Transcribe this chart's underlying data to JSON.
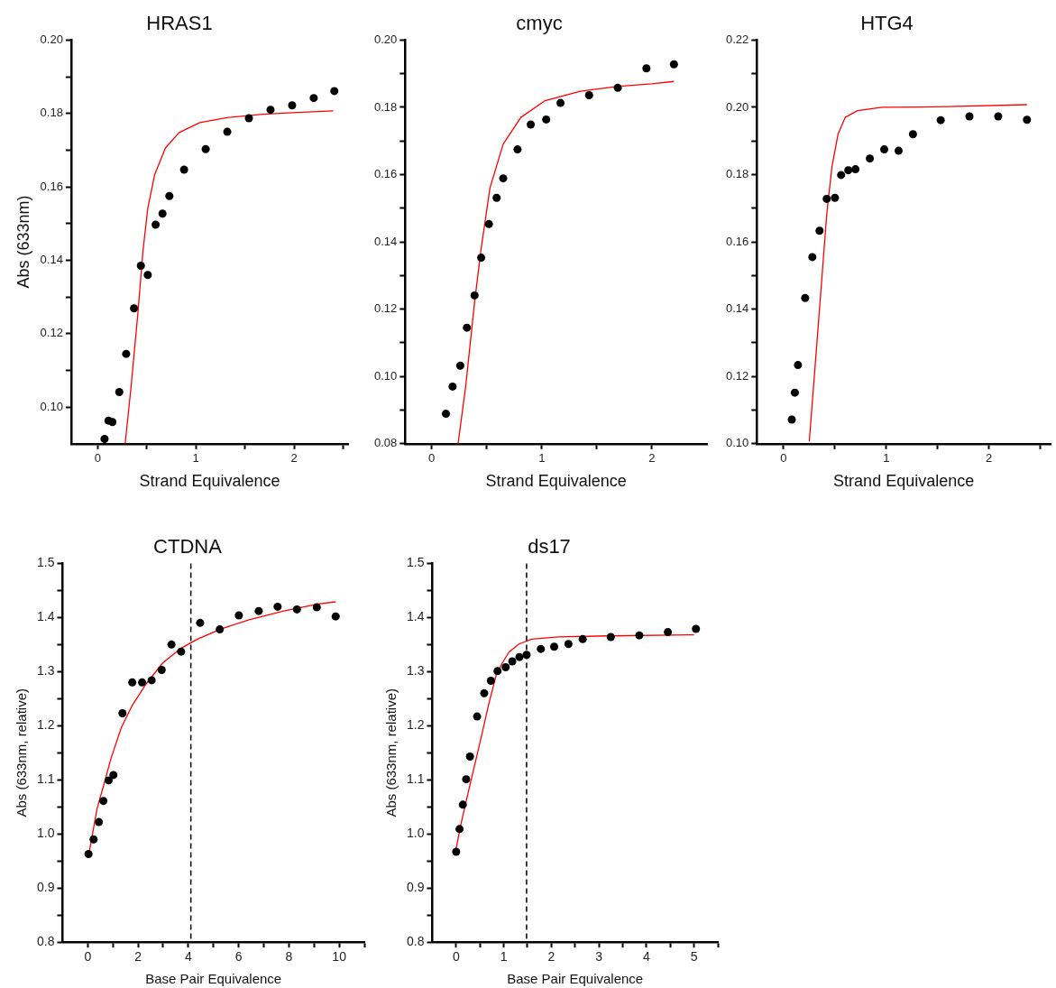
{
  "chart_data": [
    {
      "type": "scatter",
      "title": "HRAS1",
      "xlabel": "Strand Equivalence",
      "ylabel": "Abs (633nm)",
      "marker": "circle",
      "grid": false,
      "xlim": [
        -0.27,
        2.55
      ],
      "ylim": [
        0.09,
        0.2
      ],
      "xticks": [
        0,
        {
          "value": 0.5,
          "label": null
        },
        1,
        {
          "value": 1.5,
          "label": null
        },
        2,
        {
          "value": 2.5,
          "label": null
        }
      ],
      "yticks": [
        {
          "value": 0.1,
          "label": "0.10"
        },
        {
          "value": 0.11,
          "label": null
        },
        0.12,
        {
          "value": 0.13,
          "label": null
        },
        0.14,
        {
          "value": 0.15,
          "label": null
        },
        0.16,
        {
          "value": 0.17,
          "label": null
        },
        0.18,
        {
          "value": 0.19,
          "label": null
        },
        {
          "value": 0.2,
          "label": "0.20"
        }
      ],
      "series": [
        {
          "type": "scatter",
          "color": "#000000",
          "x": [
            0.07,
            0.11,
            0.15,
            0.22,
            0.29,
            0.37,
            0.44,
            0.51,
            0.59,
            0.66,
            0.73,
            0.88,
            1.1,
            1.32,
            1.54,
            1.76,
            1.98,
            2.2,
            2.41
          ],
          "values": [
            0.0913,
            0.0963,
            0.0959,
            0.1041,
            0.1145,
            0.1269,
            0.1385,
            0.136,
            0.1497,
            0.1527,
            0.1575,
            0.1647,
            0.1703,
            0.175,
            0.1787,
            0.181,
            0.1822,
            0.1842,
            0.1861
          ]
        },
        {
          "type": "line",
          "marker": "none",
          "color": "#ff0000",
          "x": [
            0.28,
            0.34,
            0.41,
            0.46,
            0.51,
            0.58,
            0.69,
            0.83,
            1.04,
            1.33,
            1.68,
            2.03,
            2.4
          ],
          "values": [
            0.09,
            0.1055,
            0.1257,
            0.1422,
            0.1541,
            0.1633,
            0.1706,
            0.1748,
            0.1775,
            0.1789,
            0.1798,
            0.1803,
            0.1807
          ]
        }
      ]
    },
    {
      "type": "scatter",
      "title": "cmyc",
      "xlabel": "Strand Equivalence",
      "marker": "circle",
      "grid": false,
      "xlim": [
        -0.24,
        2.5
      ],
      "ylim": [
        0.08,
        0.2
      ],
      "xticks": [
        0,
        {
          "value": 0.5,
          "label": null
        },
        1,
        {
          "value": 1.5,
          "label": null
        },
        2
      ],
      "yticks": [
        0.08,
        {
          "value": 0.09,
          "label": null
        },
        {
          "value": 0.1,
          "label": "0.10"
        },
        {
          "value": 0.11,
          "label": null
        },
        0.12,
        {
          "value": 0.13,
          "label": null
        },
        0.14,
        {
          "value": 0.15,
          "label": null
        },
        0.16,
        {
          "value": 0.17,
          "label": null
        },
        0.18,
        {
          "value": 0.19,
          "label": null
        },
        {
          "value": 0.2,
          "label": "0.20"
        }
      ],
      "series": [
        {
          "type": "scatter",
          "color": "#000000",
          "x": [
            0.13,
            0.19,
            0.26,
            0.32,
            0.39,
            0.45,
            0.52,
            0.59,
            0.65,
            0.78,
            0.9,
            1.04,
            1.17,
            1.43,
            1.69,
            1.95,
            2.2
          ],
          "values": [
            0.0889,
            0.097,
            0.1032,
            0.1145,
            0.1241,
            0.1353,
            0.1453,
            0.1531,
            0.1589,
            0.1675,
            0.1749,
            0.1764,
            0.1813,
            0.1836,
            0.1858,
            0.1916,
            0.1928
          ]
        },
        {
          "type": "line",
          "marker": "none",
          "color": "#ff0000",
          "x": [
            0.24,
            0.31,
            0.39,
            0.45,
            0.53,
            0.65,
            0.81,
            1.03,
            1.35,
            1.68,
            2.0,
            2.2
          ],
          "values": [
            0.08,
            0.0972,
            0.1221,
            0.1381,
            0.1561,
            0.1691,
            0.177,
            0.182,
            0.1848,
            0.1862,
            0.187,
            0.1877
          ]
        }
      ]
    },
    {
      "type": "scatter",
      "title": "HTG4",
      "xlabel": "Strand Equivalence",
      "marker": "circle",
      "grid": false,
      "xlim": [
        -0.26,
        2.6
      ],
      "ylim": [
        0.1,
        0.22
      ],
      "xticks": [
        0,
        {
          "value": 0.5,
          "label": null
        },
        1,
        {
          "value": 1.5,
          "label": null
        },
        2,
        {
          "value": 2.5,
          "label": null
        }
      ],
      "yticks": [
        {
          "value": 0.1,
          "label": "0.10"
        },
        {
          "value": 0.11,
          "label": null
        },
        0.12,
        {
          "value": 0.13,
          "label": null
        },
        0.14,
        {
          "value": 0.15,
          "label": null
        },
        0.16,
        {
          "value": 0.17,
          "label": null
        },
        0.18,
        {
          "value": 0.19,
          "label": null
        },
        {
          "value": 0.2,
          "label": "0.20"
        },
        {
          "value": 0.21,
          "label": null
        },
        0.22
      ],
      "series": [
        {
          "type": "scatter",
          "color": "#000000",
          "x": [
            0.08,
            0.11,
            0.14,
            0.21,
            0.28,
            0.35,
            0.42,
            0.5,
            0.56,
            0.63,
            0.7,
            0.84,
            0.98,
            1.12,
            1.26,
            1.53,
            1.81,
            2.09,
            2.37
          ],
          "values": [
            0.1072,
            0.1152,
            0.1234,
            0.1433,
            0.1555,
            0.1633,
            0.1728,
            0.1731,
            0.1799,
            0.1813,
            0.1816,
            0.1848,
            0.1875,
            0.1871,
            0.192,
            0.1962,
            0.1973,
            0.1973,
            0.1963
          ]
        },
        {
          "type": "line",
          "marker": "none",
          "color": "#ff0000",
          "x": [
            0.25,
            0.33,
            0.42,
            0.47,
            0.53,
            0.6,
            0.72,
            0.96,
            1.6,
            2.37
          ],
          "values": [
            0.1007,
            0.1321,
            0.1681,
            0.1821,
            0.192,
            0.197,
            0.199,
            0.2,
            0.2002,
            0.2008
          ]
        }
      ]
    },
    {
      "type": "scatter",
      "title": "CTDNA",
      "xlabel": "Base Pair Equivalence",
      "ylabel": "Abs (633nm, relative)",
      "marker": "circle",
      "grid": false,
      "xlim": [
        -1,
        11
      ],
      "ylim": [
        0.8,
        1.5
      ],
      "xticks": [
        0,
        {
          "value": 1,
          "label": null
        },
        2,
        {
          "value": 3,
          "label": null
        },
        4,
        {
          "value": 5,
          "label": null
        },
        6,
        {
          "value": 7,
          "label": null
        },
        8,
        {
          "value": 9,
          "label": null
        },
        10,
        {
          "value": 11,
          "label": null
        }
      ],
      "yticks": [
        0.8,
        {
          "value": 0.85,
          "label": null
        },
        0.9,
        {
          "value": 0.95,
          "label": null
        },
        {
          "value": 1,
          "label": "1.0"
        },
        {
          "value": 1.05,
          "label": null
        },
        1.1,
        {
          "value": 1.15,
          "label": null
        },
        1.2,
        {
          "value": 1.25,
          "label": null
        },
        1.3,
        {
          "value": 1.35,
          "label": null
        },
        1.4,
        {
          "value": 1.45,
          "label": null
        },
        1.5
      ],
      "ref_lines": [
        {
          "axis": "x",
          "value": 4.1,
          "line_style": "dashed",
          "color": "#000000"
        }
      ],
      "series": [
        {
          "type": "scatter",
          "color": "#000000",
          "x": [
            0.03,
            0.23,
            0.44,
            0.62,
            0.83,
            1.02,
            1.38,
            1.77,
            2.16,
            2.54,
            2.94,
            3.33,
            3.71,
            4.47,
            5.25,
            6.01,
            6.8,
            7.55,
            8.32,
            9.11,
            9.86
          ],
          "values": [
            0.963,
            0.99,
            1.022,
            1.061,
            1.099,
            1.109,
            1.223,
            1.28,
            1.28,
            1.284,
            1.303,
            1.35,
            1.337,
            1.39,
            1.378,
            1.404,
            1.412,
            1.42,
            1.415,
            1.419,
            1.402
          ]
        },
        {
          "type": "line",
          "marker": "none",
          "color": "#ff0000",
          "x": [
            0.06,
            0.37,
            0.65,
            0.92,
            1.33,
            1.75,
            2.3,
            2.98,
            3.67,
            4.36,
            5.32,
            6.42,
            7.8,
            9.17,
            9.86
          ],
          "values": [
            0.967,
            1.047,
            1.093,
            1.139,
            1.196,
            1.236,
            1.276,
            1.316,
            1.342,
            1.36,
            1.379,
            1.396,
            1.412,
            1.425,
            1.429
          ]
        }
      ]
    },
    {
      "type": "scatter",
      "title": "ds17",
      "xlabel": "Base Pair Equivalence",
      "ylabel": "Abs (633nm, relative)",
      "marker": "circle",
      "grid": false,
      "xlim": [
        -0.5,
        5.5
      ],
      "ylim": [
        0.8,
        1.5
      ],
      "xticks": [
        0,
        {
          "value": 0.5,
          "label": null
        },
        1,
        {
          "value": 1.5,
          "label": null
        },
        2,
        {
          "value": 2.5,
          "label": null
        },
        3,
        {
          "value": 3.5,
          "label": null
        },
        4,
        {
          "value": 4.5,
          "label": null
        },
        5,
        {
          "value": 5.5,
          "label": null
        }
      ],
      "yticks": [
        0.8,
        {
          "value": 0.85,
          "label": null
        },
        0.9,
        {
          "value": 0.95,
          "label": null
        },
        {
          "value": 1,
          "label": "1.0"
        },
        {
          "value": 1.05,
          "label": null
        },
        1.1,
        {
          "value": 1.15,
          "label": null
        },
        1.2,
        {
          "value": 1.25,
          "label": null
        },
        1.3,
        {
          "value": 1.35,
          "label": null
        },
        1.4,
        {
          "value": 1.45,
          "label": null
        },
        1.5
      ],
      "ref_lines": [
        {
          "axis": "x",
          "value": 1.48,
          "line_style": "dashed",
          "color": "#000000"
        }
      ],
      "series": [
        {
          "type": "scatter",
          "color": "#000000",
          "x": [
            0,
            0.07,
            0.14,
            0.21,
            0.29,
            0.44,
            0.59,
            0.73,
            0.87,
            1.04,
            1.18,
            1.33,
            1.48,
            1.78,
            2.06,
            2.36,
            2.66,
            3.25,
            3.85,
            4.45,
            5.04
          ],
          "values": [
            0.967,
            1.009,
            1.054,
            1.101,
            1.143,
            1.217,
            1.26,
            1.283,
            1.301,
            1.308,
            1.319,
            1.327,
            1.331,
            1.342,
            1.346,
            1.351,
            1.36,
            1.364,
            1.367,
            1.373,
            1.379
          ]
        },
        {
          "type": "line",
          "marker": "none",
          "color": "#ff0000",
          "x": [
            0,
            0.1,
            0.28,
            0.48,
            0.69,
            0.84,
            0.97,
            1.11,
            1.32,
            1.59,
            2.15,
            3.19,
            5.0
          ],
          "values": [
            0.973,
            1.018,
            1.087,
            1.161,
            1.242,
            1.293,
            1.316,
            1.336,
            1.351,
            1.36,
            1.364,
            1.366,
            1.368
          ]
        }
      ]
    }
  ]
}
